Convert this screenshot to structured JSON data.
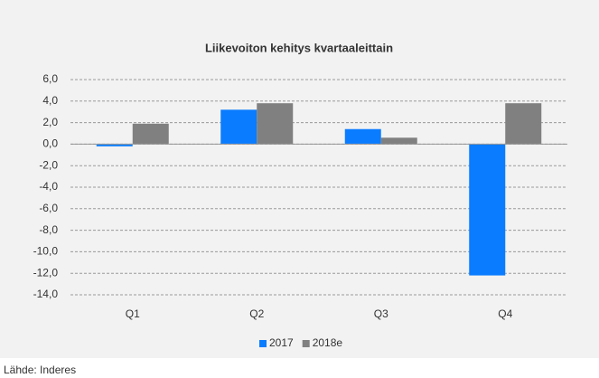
{
  "chart_data": {
    "type": "bar",
    "title": "Liikevoiton kehitys kvartaaleittain",
    "categories": [
      "Q1",
      "Q2",
      "Q3",
      "Q4"
    ],
    "series": [
      {
        "name": "2017",
        "color": "#0a7cff",
        "values": [
          -0.2,
          3.2,
          1.4,
          -12.2
        ]
      },
      {
        "name": "2018e",
        "color": "#808080",
        "values": [
          1.9,
          3.8,
          0.6,
          3.8
        ]
      }
    ],
    "ylim": [
      -14,
      6
    ],
    "yticks": [
      {
        "value": 6,
        "label": "6,0"
      },
      {
        "value": 4,
        "label": "4,0"
      },
      {
        "value": 2,
        "label": "2,0"
      },
      {
        "value": 0,
        "label": "0,0"
      },
      {
        "value": -2,
        "label": "-2,0"
      },
      {
        "value": -4,
        "label": "-4,0"
      },
      {
        "value": -6,
        "label": "-6,0"
      },
      {
        "value": -8,
        "label": "-8,0"
      },
      {
        "value": -10,
        "label": "-10,0"
      },
      {
        "value": -12,
        "label": "-12,0"
      },
      {
        "value": -14,
        "label": "-14,0"
      }
    ],
    "grid": true,
    "legend": "bottom",
    "source": "Lähde: Inderes"
  }
}
